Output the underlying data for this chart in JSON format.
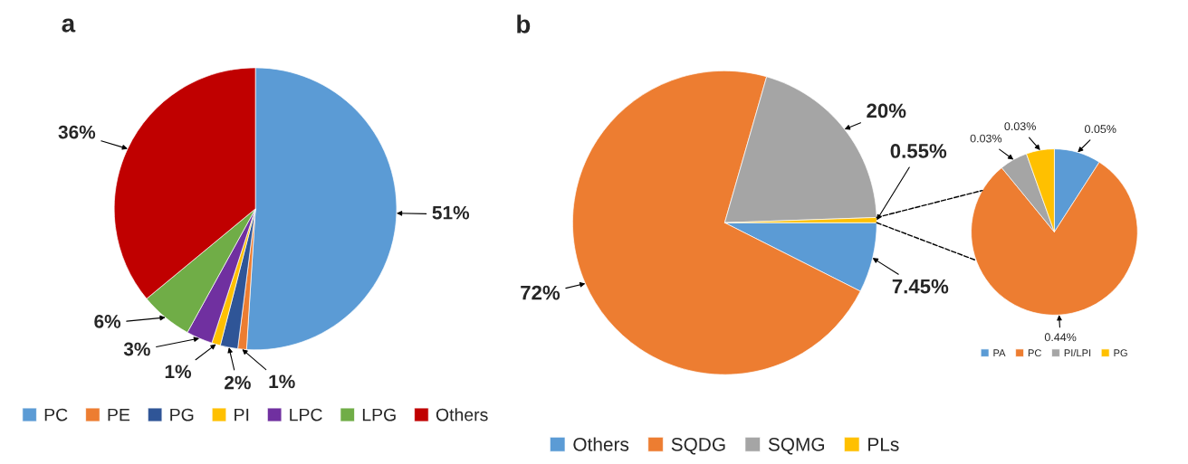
{
  "chart_data": [
    {
      "type": "pie",
      "title": "a",
      "categories": [
        "PC",
        "PE",
        "PG",
        "PI",
        "LPC",
        "LPG",
        "Others"
      ],
      "values": [
        51,
        1,
        2,
        1,
        3,
        6,
        36
      ],
      "colors": [
        "#5b9bd5",
        "#ed7d31",
        "#2f5597",
        "#ffc000",
        "#7030a0",
        "#70ad47",
        "#c00000"
      ],
      "value_labels": [
        "51%",
        "1%",
        "2%",
        "1%",
        "3%",
        "6%",
        "36%"
      ],
      "legend": "bottom"
    },
    {
      "type": "pie",
      "title": "b",
      "categories": [
        "Others",
        "SQDG",
        "SQMG",
        "PLs"
      ],
      "values": [
        7.45,
        72,
        20,
        0.55
      ],
      "colors": [
        "#5b9bd5",
        "#ed7d31",
        "#a5a5a5",
        "#ffc000"
      ],
      "value_labels": [
        "7.45%",
        "72%",
        "20%",
        "0.55%"
      ],
      "legend": "bottom"
    },
    {
      "type": "pie",
      "categories": [
        "PA",
        "PC",
        "PI/LPI",
        "PG"
      ],
      "values": [
        0.05,
        0.44,
        0.03,
        0.03
      ],
      "colors": [
        "#5b9bd5",
        "#ed7d31",
        "#a5a5a5",
        "#ffc000"
      ],
      "value_labels": [
        "0.05%",
        "0.44%",
        "0.03%",
        "0.03%"
      ],
      "legend": "bottom"
    }
  ]
}
